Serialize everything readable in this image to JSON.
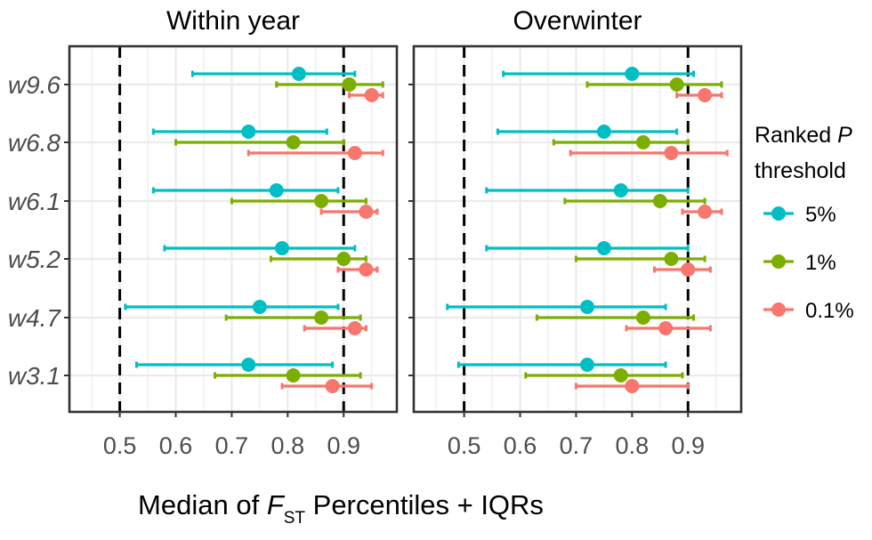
{
  "chart_data": {
    "type": "scatter",
    "subtype": "point-range (median with IQR error bars)",
    "panels": [
      "Within year",
      "Overwinter"
    ],
    "categories": [
      "w9.6",
      "w6.8",
      "w6.1",
      "w5.2",
      "w4.7",
      "w3.1"
    ],
    "xlabel": "Median of ",
    "xlabel_symbol": "F",
    "xlabel_subscript": "ST",
    "xlabel_suffix": " Percentiles + IQRs",
    "xticks": [
      "0.5",
      "0.6",
      "0.7",
      "0.8",
      "0.9"
    ],
    "xlim": [
      0.41,
      0.995
    ],
    "reference_lines": [
      0.5,
      0.9
    ],
    "grid": true,
    "legend": {
      "title_line1": "Ranked ",
      "title_symbol": "P",
      "title_line2": "threshold",
      "position": "right"
    },
    "series": [
      {
        "name": "5%",
        "color": "#00BFC4",
        "data": {
          "Within year": {
            "w9.6": {
              "median": 0.82,
              "low": 0.63,
              "high": 0.92
            },
            "w6.8": {
              "median": 0.73,
              "low": 0.56,
              "high": 0.87
            },
            "w6.1": {
              "median": 0.78,
              "low": 0.56,
              "high": 0.89
            },
            "w5.2": {
              "median": 0.79,
              "low": 0.58,
              "high": 0.92
            },
            "w4.7": {
              "median": 0.75,
              "low": 0.51,
              "high": 0.89
            },
            "w3.1": {
              "median": 0.73,
              "low": 0.53,
              "high": 0.88
            }
          },
          "Overwinter": {
            "w9.6": {
              "median": 0.8,
              "low": 0.57,
              "high": 0.91
            },
            "w6.8": {
              "median": 0.75,
              "low": 0.56,
              "high": 0.88
            },
            "w6.1": {
              "median": 0.78,
              "low": 0.54,
              "high": 0.9
            },
            "w5.2": {
              "median": 0.75,
              "low": 0.54,
              "high": 0.9
            },
            "w4.7": {
              "median": 0.72,
              "low": 0.47,
              "high": 0.86
            },
            "w3.1": {
              "median": 0.72,
              "low": 0.49,
              "high": 0.86
            }
          }
        }
      },
      {
        "name": "1%",
        "color": "#7CAE00",
        "data": {
          "Within year": {
            "w9.6": {
              "median": 0.91,
              "low": 0.78,
              "high": 0.97
            },
            "w6.8": {
              "median": 0.81,
              "low": 0.6,
              "high": 0.9
            },
            "w6.1": {
              "median": 0.86,
              "low": 0.7,
              "high": 0.94
            },
            "w5.2": {
              "median": 0.9,
              "low": 0.77,
              "high": 0.94
            },
            "w4.7": {
              "median": 0.86,
              "low": 0.69,
              "high": 0.93
            },
            "w3.1": {
              "median": 0.81,
              "low": 0.67,
              "high": 0.93
            }
          },
          "Overwinter": {
            "w9.6": {
              "median": 0.88,
              "low": 0.72,
              "high": 0.96
            },
            "w6.8": {
              "median": 0.82,
              "low": 0.66,
              "high": 0.9
            },
            "w6.1": {
              "median": 0.85,
              "low": 0.68,
              "high": 0.93
            },
            "w5.2": {
              "median": 0.87,
              "low": 0.7,
              "high": 0.93
            },
            "w4.7": {
              "median": 0.82,
              "low": 0.63,
              "high": 0.91
            },
            "w3.1": {
              "median": 0.78,
              "low": 0.61,
              "high": 0.89
            }
          }
        }
      },
      {
        "name": "0.1%",
        "color": "#F8766D",
        "data": {
          "Within year": {
            "w9.6": {
              "median": 0.95,
              "low": 0.91,
              "high": 0.97
            },
            "w6.8": {
              "median": 0.92,
              "low": 0.73,
              "high": 0.97
            },
            "w6.1": {
              "median": 0.94,
              "low": 0.86,
              "high": 0.96
            },
            "w5.2": {
              "median": 0.94,
              "low": 0.89,
              "high": 0.96
            },
            "w4.7": {
              "median": 0.92,
              "low": 0.83,
              "high": 0.94
            },
            "w3.1": {
              "median": 0.88,
              "low": 0.79,
              "high": 0.95
            }
          },
          "Overwinter": {
            "w9.6": {
              "median": 0.93,
              "low": 0.88,
              "high": 0.96
            },
            "w6.8": {
              "median": 0.87,
              "low": 0.69,
              "high": 0.97
            },
            "w6.1": {
              "median": 0.93,
              "low": 0.89,
              "high": 0.96
            },
            "w5.2": {
              "median": 0.9,
              "low": 0.84,
              "high": 0.94
            },
            "w4.7": {
              "median": 0.86,
              "low": 0.79,
              "high": 0.94
            },
            "w3.1": {
              "median": 0.8,
              "low": 0.7,
              "high": 0.9
            }
          }
        }
      }
    ]
  }
}
